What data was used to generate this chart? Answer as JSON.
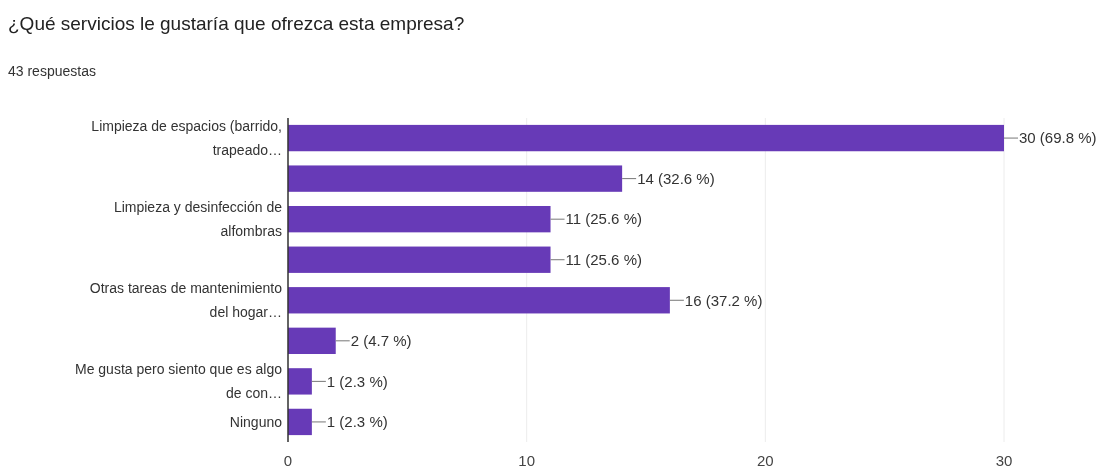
{
  "chart_data": {
    "type": "bar",
    "orientation": "horizontal",
    "title": "¿Qué servicios le gustaría que ofrezca esta empresa?",
    "subtitle": "43 respuestas",
    "categories": [
      "Limpieza de espacios (barrido, trapeado…",
      null,
      "Limpieza y desinfección de alfombras",
      null,
      "Otras tareas de mantenimiento del hogar…",
      null,
      "Me gusta pero siento que es algo de con…",
      "Ninguno"
    ],
    "values": [
      30,
      14,
      11,
      11,
      16,
      2,
      1,
      1
    ],
    "value_labels": [
      "30 (69.8 %)",
      "14 (32.6 %)",
      "11 (25.6 %)",
      "11 (25.6 %)",
      "16 (37.2 %)",
      "2 (4.7 %)",
      "1 (2.3 %)",
      "1 (2.3 %)"
    ],
    "color": "#673ab7",
    "xlim": [
      0,
      30
    ],
    "xticks": [
      0,
      10,
      20,
      30
    ],
    "grid": "x"
  }
}
